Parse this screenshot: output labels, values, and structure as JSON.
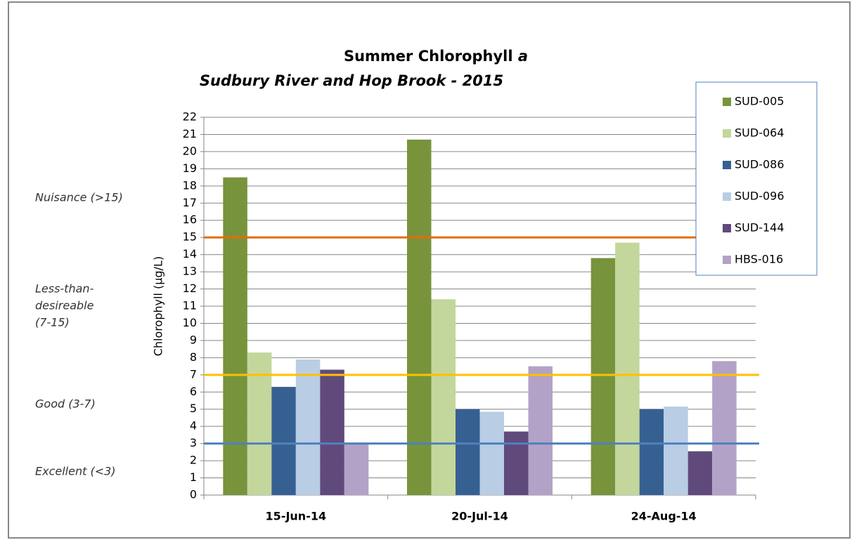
{
  "chart_data": {
    "type": "bar",
    "title": "Summer Chlorophyll",
    "title_italic": "a",
    "subtitle": "Sudbury River and Hop Brook - 2015",
    "y_label": "Chlorophyll (µg/L)",
    "categories": [
      "15-Jun-14",
      "20-Jul-14",
      "24-Aug-14"
    ],
    "series": [
      {
        "name": "SUD-005",
        "color": "#77933c",
        "values": [
          18.5,
          20.7,
          13.8
        ]
      },
      {
        "name": "SUD-064",
        "color": "#c3d69b",
        "values": [
          8.3,
          11.4,
          14.7
        ]
      },
      {
        "name": "SUD-086",
        "color": "#376092",
        "values": [
          6.3,
          5.0,
          5.0
        ]
      },
      {
        "name": "SUD-096",
        "color": "#b9cde5",
        "values": [
          7.9,
          4.85,
          5.15
        ]
      },
      {
        "name": "SUD-144",
        "color": "#604a7b",
        "values": [
          7.3,
          3.7,
          2.55
        ]
      },
      {
        "name": "HBS-016",
        "color": "#b3a2c7",
        "values": [
          3.0,
          7.5,
          7.8
        ]
      }
    ],
    "ylim": [
      0,
      22
    ],
    "yticks": [
      0,
      1,
      2,
      3,
      4,
      5,
      6,
      7,
      8,
      9,
      10,
      11,
      12,
      13,
      14,
      15,
      16,
      17,
      18,
      19,
      20,
      21,
      22
    ],
    "grid": true,
    "legend": "top-right",
    "reference_lines": [
      {
        "value": 15,
        "color": "#e46c0a"
      },
      {
        "value": 7,
        "color": "#ffc000"
      },
      {
        "value": 3,
        "color": "#4f81bd"
      }
    ],
    "annotations": [
      {
        "lines": [
          "Nuisance (>15)"
        ]
      },
      {
        "lines": [
          "Less-than-",
          "desireable",
          "(7-15)"
        ]
      },
      {
        "lines": [
          "Good (3-7)"
        ]
      },
      {
        "lines": [
          "Excellent (<3)"
        ]
      }
    ]
  }
}
